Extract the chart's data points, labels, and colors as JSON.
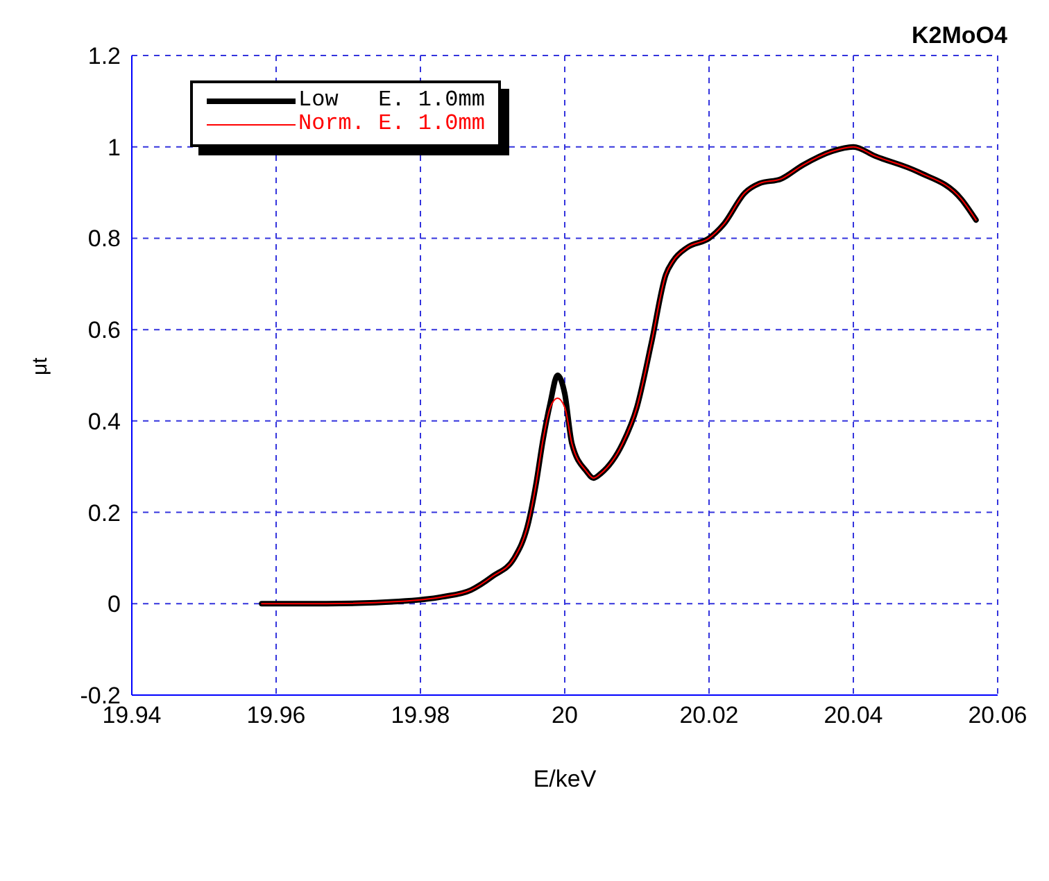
{
  "chart_data": {
    "type": "line",
    "title": "K2MoO4",
    "xlabel": "E/keV",
    "ylabel": "μt",
    "x": [
      19.958,
      19.967,
      19.977,
      19.983,
      19.987,
      19.99,
      19.993,
      19.995,
      19.996,
      19.997,
      19.998,
      19.999,
      20.0,
      20.001,
      20.003,
      20.004,
      20.005,
      20.008,
      20.01,
      20.012,
      20.014,
      20.015,
      20.017,
      20.02,
      20.022,
      20.025,
      20.027,
      20.03,
      20.033,
      20.037,
      20.04,
      20.043,
      20.049,
      20.055,
      20.057
    ],
    "series": [
      {
        "name": "Low   E. 1.0mm",
        "color": "#000000",
        "values": [
          0,
          0,
          0.005,
          0.015,
          0.03,
          0.06,
          0.1,
          0.18,
          0.26,
          0.36,
          0.44,
          0.5,
          0.46,
          0.35,
          0.29,
          0.275,
          0.285,
          0.35,
          0.43,
          0.57,
          0.72,
          0.75,
          0.78,
          0.8,
          0.83,
          0.9,
          0.92,
          0.93,
          0.96,
          0.99,
          1.0,
          0.98,
          0.945,
          0.885,
          0.84
        ]
      },
      {
        "name": "Norm. E. 1.0mm",
        "color": "#ff0000",
        "values": [
          0,
          0,
          0.005,
          0.015,
          0.03,
          0.06,
          0.1,
          0.18,
          0.26,
          0.36,
          0.43,
          0.45,
          0.43,
          0.35,
          0.29,
          0.275,
          0.285,
          0.35,
          0.43,
          0.57,
          0.72,
          0.75,
          0.78,
          0.8,
          0.83,
          0.9,
          0.92,
          0.93,
          0.96,
          0.99,
          1.0,
          0.98,
          0.945,
          0.885,
          0.84
        ]
      }
    ],
    "xlim": [
      19.94,
      20.06
    ],
    "xticks": [
      19.94,
      19.96,
      19.98,
      20,
      20.02,
      20.04,
      20.06
    ],
    "ylim": [
      -0.2,
      1.2
    ],
    "yticks": [
      -0.2,
      0,
      0.2,
      0.4,
      0.6,
      0.8,
      1,
      1.2
    ],
    "grid": true,
    "legend": "top left",
    "line_style": "solid",
    "marker": "none"
  }
}
